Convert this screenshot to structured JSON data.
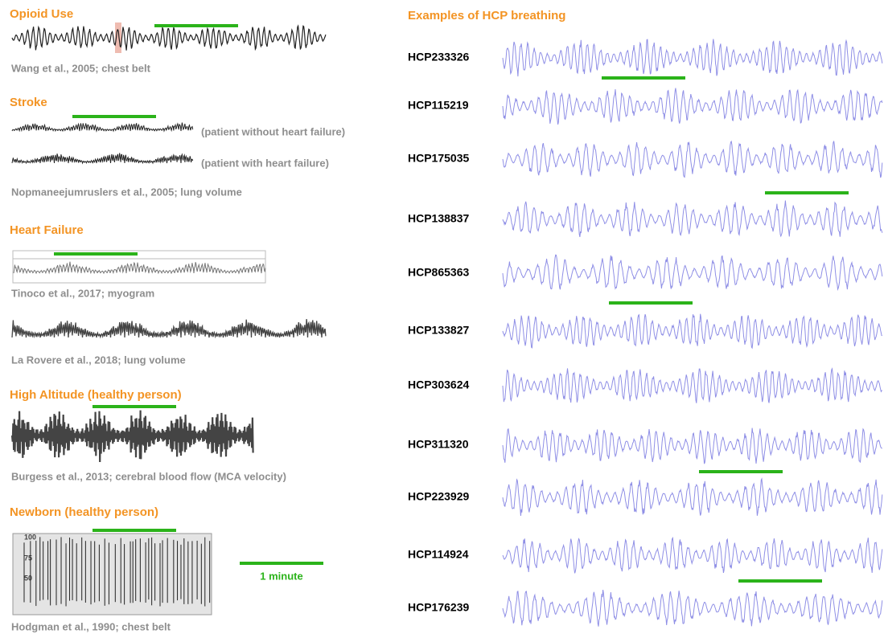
{
  "left_panel": {
    "sections": [
      {
        "title": "Opioid Use",
        "captions": [
          "Wang et al., 2005; chest belt"
        ]
      },
      {
        "title": "Stroke",
        "annotations": [
          "(patient without heart failure)",
          "(patient with heart failure)"
        ],
        "captions": [
          "Nopmaneejumruslers et al., 2005; lung volume"
        ]
      },
      {
        "title": "Heart Failure",
        "captions": [
          "Tinoco et al., 2017; myogram",
          "La Rovere et al., 2018; lung volume"
        ]
      },
      {
        "title": "High Altitude (healthy person)",
        "captions": [
          "Burgess et al., 2013; cerebral blood flow (MCA velocity)"
        ]
      },
      {
        "title": "Newborn (healthy person)",
        "image_labels": [
          "100",
          "75",
          "50"
        ],
        "captions": [
          "Hodgman et al., 1990; chest belt"
        ]
      }
    ]
  },
  "scale_bar": {
    "label": "1 minute"
  },
  "right_panel": {
    "title": "Examples of HCP breathing",
    "subjects": [
      "HCP233326",
      "HCP115219",
      "HCP175035",
      "HCP138837",
      "HCP865363",
      "HCP133827",
      "HCP303624",
      "HCP311320",
      "HCP223929",
      "HCP114924",
      "HCP176239"
    ]
  }
}
